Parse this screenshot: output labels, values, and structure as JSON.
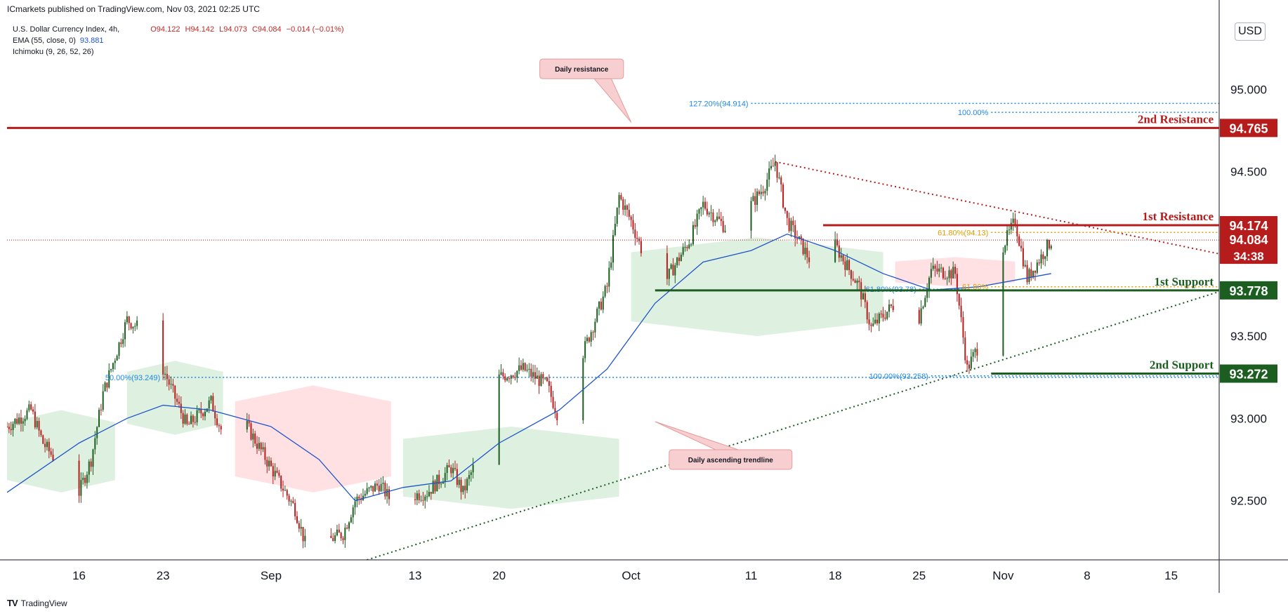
{
  "header": {
    "published_by": "ICmarkets published on TradingView.com, Nov 03, 2021 02:25 UTC",
    "symbol": "U.S. Dollar Currency Index, 4h,",
    "ohlc": {
      "o": "O94.122",
      "h": "H94.142",
      "l": "L94.073",
      "c": "C94.084",
      "chg": "−0.014 (−0.01%)"
    },
    "ema_label": "EMA (55, close, 0)",
    "ema_value": "93.881",
    "ichimoku_label": "Ichimoku (9, 26, 52, 26)"
  },
  "currency_button": "USD",
  "footer": {
    "logo": "TV",
    "brand": "TradingView"
  },
  "colors": {
    "up": "#1b5e20",
    "down": "#b71c1c",
    "resistance": "#b71c1c",
    "support": "#1b5e20",
    "ema": "#1e55c9",
    "fib_blue": "#1e88e5",
    "fib_orange": "#e69a00",
    "kumo_green": "#c8e6c9",
    "kumo_red": "#ffcdd2"
  },
  "chart_data": {
    "type": "candlestick",
    "timeframe": "4h",
    "x_ticks": [
      {
        "label": "16",
        "date": "2021-08-16"
      },
      {
        "label": "23",
        "date": "2021-08-23"
      },
      {
        "label": "Sep",
        "date": "2021-09-01"
      },
      {
        "label": "13",
        "date": "2021-09-13"
      },
      {
        "label": "20",
        "date": "2021-09-20"
      },
      {
        "label": "Oct",
        "date": "2021-10-01"
      },
      {
        "label": "11",
        "date": "2021-10-11"
      },
      {
        "label": "18",
        "date": "2021-10-18"
      },
      {
        "label": "25",
        "date": "2021-10-25"
      },
      {
        "label": "Nov",
        "date": "2021-11-01"
      },
      {
        "label": "8",
        "date": "2021-11-08"
      },
      {
        "label": "15",
        "date": "2021-11-15"
      }
    ],
    "xlim": [
      "2021-08-10",
      "2021-11-19"
    ],
    "y_ticks": [
      "92.500",
      "93.000",
      "93.500",
      "94.000",
      "94.500",
      "95.000"
    ],
    "ylim": [
      92.14,
      95.5
    ],
    "price_path": [
      [
        "2021-08-10",
        92.95
      ],
      [
        "2021-08-12",
        93.05
      ],
      [
        "2021-08-13",
        92.85
      ],
      [
        "2021-08-16",
        92.55
      ],
      [
        "2021-08-17",
        92.75
      ],
      [
        "2021-08-18",
        93.15
      ],
      [
        "2021-08-20",
        93.6
      ],
      [
        "2021-08-21",
        93.55
      ],
      [
        "2021-08-23",
        93.3
      ],
      [
        "2021-08-25",
        92.95
      ],
      [
        "2021-08-27",
        93.1
      ],
      [
        "2021-08-28",
        92.9
      ],
      [
        "2021-08-30",
        92.95
      ],
      [
        "2021-09-01",
        92.7
      ],
      [
        "2021-09-03",
        92.45
      ],
      [
        "2021-09-04",
        92.2
      ],
      [
        "2021-09-07",
        92.3
      ],
      [
        "2021-09-08",
        92.5
      ],
      [
        "2021-09-10",
        92.6
      ],
      [
        "2021-09-11",
        92.5
      ],
      [
        "2021-09-14",
        92.55
      ],
      [
        "2021-09-16",
        92.7
      ],
      [
        "2021-09-17",
        92.55
      ],
      [
        "2021-09-19",
        92.9
      ],
      [
        "2021-09-20",
        93.25
      ],
      [
        "2021-09-22",
        93.3
      ],
      [
        "2021-09-24",
        93.2
      ],
      [
        "2021-09-25",
        93.0
      ],
      [
        "2021-09-27",
        93.4
      ],
      [
        "2021-09-29",
        93.8
      ],
      [
        "2021-09-30",
        94.35
      ],
      [
        "2021-10-01",
        94.2
      ],
      [
        "2021-10-02",
        94.0
      ],
      [
        "2021-10-04",
        93.85
      ],
      [
        "2021-10-06",
        94.1
      ],
      [
        "2021-10-07",
        94.3
      ],
      [
        "2021-10-09",
        94.15
      ],
      [
        "2021-10-11",
        94.3
      ],
      [
        "2021-10-12",
        94.4
      ],
      [
        "2021-10-13",
        94.56
      ],
      [
        "2021-10-14",
        94.2
      ],
      [
        "2021-10-16",
        93.95
      ],
      [
        "2021-10-17",
        93.88
      ],
      [
        "2021-10-18",
        94.05
      ],
      [
        "2021-10-20",
        93.8
      ],
      [
        "2021-10-21",
        93.55
      ],
      [
        "2021-10-23",
        93.7
      ],
      [
        "2021-10-25",
        93.62
      ],
      [
        "2021-10-26",
        93.9
      ],
      [
        "2021-10-28",
        93.88
      ],
      [
        "2021-10-29",
        93.3
      ],
      [
        "2021-10-30",
        93.45
      ],
      [
        "2021-11-01",
        94.05
      ],
      [
        "2021-11-02",
        94.2
      ],
      [
        "2021-11-03",
        93.85
      ],
      [
        "2021-11-05",
        94.08
      ]
    ],
    "ema_path": [
      [
        "2021-08-10",
        92.55
      ],
      [
        "2021-08-16",
        92.85
      ],
      [
        "2021-08-20",
        93.0
      ],
      [
        "2021-08-23",
        93.08
      ],
      [
        "2021-08-27",
        93.05
      ],
      [
        "2021-09-01",
        92.95
      ],
      [
        "2021-09-05",
        92.75
      ],
      [
        "2021-09-08",
        92.5
      ],
      [
        "2021-09-12",
        92.58
      ],
      [
        "2021-09-16",
        92.62
      ],
      [
        "2021-09-20",
        92.85
      ],
      [
        "2021-09-25",
        93.05
      ],
      [
        "2021-09-29",
        93.3
      ],
      [
        "2021-10-03",
        93.7
      ],
      [
        "2021-10-07",
        93.95
      ],
      [
        "2021-10-11",
        94.02
      ],
      [
        "2021-10-14",
        94.12
      ],
      [
        "2021-10-18",
        94.02
      ],
      [
        "2021-10-22",
        93.88
      ],
      [
        "2021-10-26",
        93.78
      ],
      [
        "2021-10-30",
        93.8
      ],
      [
        "2021-11-05",
        93.88
      ]
    ],
    "ichimoku_kumo": [
      {
        "from": "2021-08-10",
        "to": "2021-08-19",
        "top": 93.05,
        "bottom": 92.55,
        "type": "bullish"
      },
      {
        "from": "2021-08-20",
        "to": "2021-08-28",
        "top": 93.35,
        "bottom": 92.9,
        "type": "bullish"
      },
      {
        "from": "2021-08-29",
        "to": "2021-09-11",
        "top": 93.2,
        "bottom": 92.55,
        "type": "bearish"
      },
      {
        "from": "2021-09-12",
        "to": "2021-09-30",
        "top": 92.95,
        "bottom": 92.45,
        "type": "bullish"
      },
      {
        "from": "2021-10-01",
        "to": "2021-10-22",
        "top": 94.1,
        "bottom": 93.5,
        "type": "bullish"
      },
      {
        "from": "2021-10-23",
        "to": "2021-11-02",
        "top": 93.98,
        "bottom": 93.8,
        "type": "bearish"
      }
    ],
    "current_price_line": 94.084,
    "levels": [
      {
        "name": "2nd Resistance",
        "price": 94.765,
        "label": "94.765",
        "from": "2021-08-10",
        "type": "resistance"
      },
      {
        "name": "1st Resistance",
        "price": 94.174,
        "label": "94.174",
        "from": "2021-10-17",
        "type": "resistance"
      },
      {
        "name": "1st Support",
        "price": 93.778,
        "label": "93.778",
        "from": "2021-10-03",
        "type": "support"
      },
      {
        "name": "2nd Support",
        "price": 93.272,
        "label": "93.272",
        "from": "2021-10-31",
        "type": "support"
      }
    ],
    "price_labels": {
      "last": "94.084",
      "countdown": "34:38"
    },
    "trendlines": [
      {
        "name": "Daily ascending trendline",
        "from": [
          "2021-09-09",
          92.14
        ],
        "to": [
          "2021-11-19",
          93.77
        ],
        "color": "support"
      },
      {
        "name": "Descending trendline",
        "from": [
          "2021-10-13",
          94.56
        ],
        "to": [
          "2021-11-19",
          94.0
        ],
        "color": "resistance"
      }
    ],
    "fibonacci_levels": [
      {
        "label": "127.20%(94.914)",
        "price": 94.914,
        "from": "2021-10-11",
        "to": "2021-11-19",
        "color": "blue"
      },
      {
        "label": "100.00%",
        "price": 94.86,
        "from": "2021-10-31",
        "to": "2021-11-19",
        "color": "blue"
      },
      {
        "label": "50.00%(93.249)",
        "price": 93.249,
        "from": "2021-08-23",
        "to": "2021-11-19",
        "color": "blue"
      },
      {
        "label": "100.00%(93.258)",
        "price": 93.258,
        "from": "2021-10-26",
        "to": "2021-11-19",
        "color": "blue"
      },
      {
        "label": "61.80%(93.78)",
        "price": 93.785,
        "from": "2021-10-25",
        "to": "2021-10-29",
        "color": "blue"
      },
      {
        "label": "61.80%(94.13)",
        "price": 94.13,
        "from": "2021-10-31",
        "to": "2021-11-19",
        "color": "orange"
      },
      {
        "label": "61.80%",
        "price": 93.8,
        "from": "2021-10-31",
        "to": "2021-11-19",
        "color": "orange"
      }
    ],
    "callouts": [
      {
        "text": "Daily resistance",
        "anchor": [
          "2021-10-01",
          94.8
        ]
      },
      {
        "text": "Daily ascending trendline",
        "anchor": [
          "2021-10-03",
          92.98
        ]
      }
    ]
  }
}
